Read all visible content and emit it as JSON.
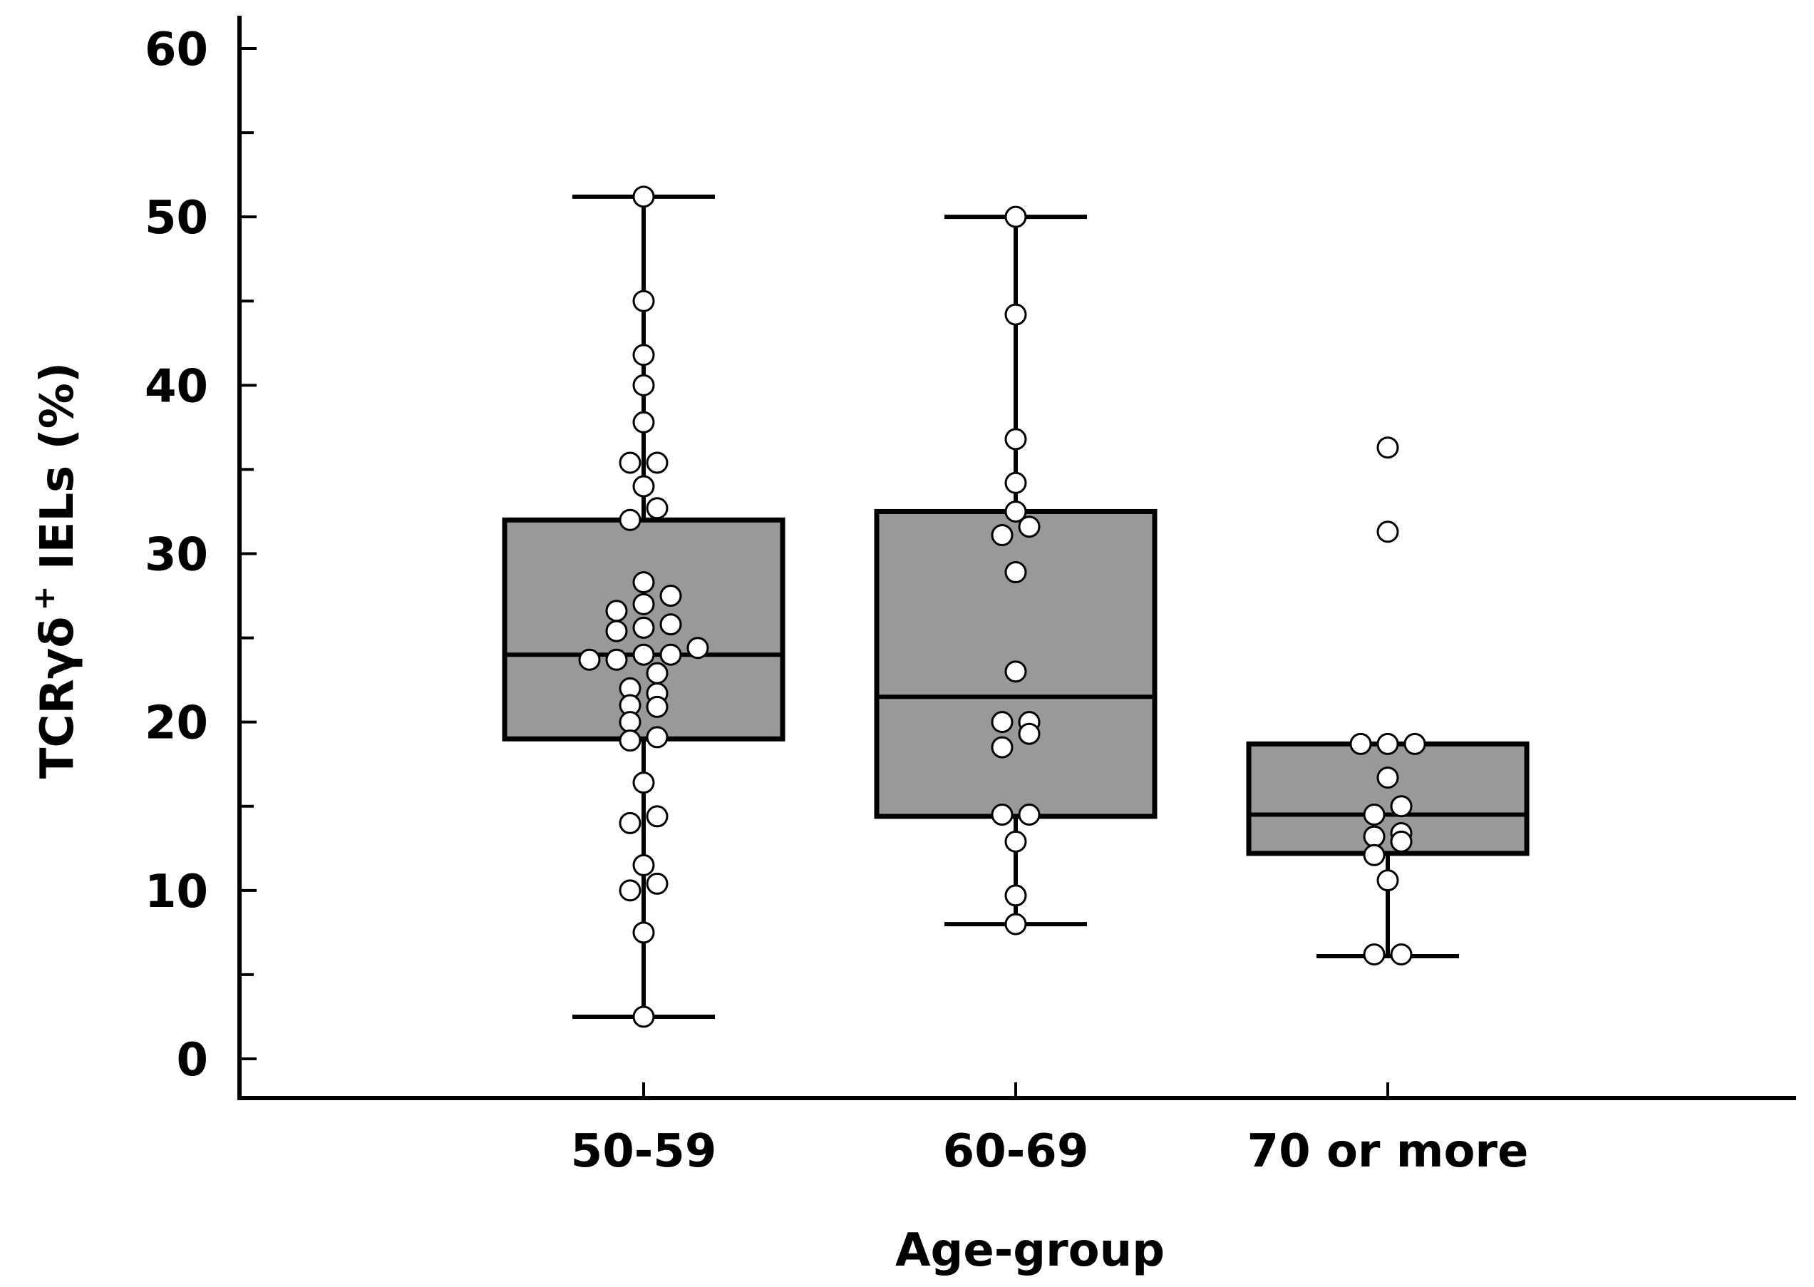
{
  "chart_data": {
    "type": "box",
    "title": "",
    "xlabel": "Age-group",
    "ylabel_main": "TCRγδ",
    "ylabel_sup": "+",
    "ylabel_rest": " IELs (%)",
    "ylim": [
      0,
      60
    ],
    "yticks": [
      0,
      10,
      20,
      30,
      40,
      50,
      60
    ],
    "ytick_labels": [
      "0",
      "10",
      "20",
      "30",
      "40",
      "50",
      "60"
    ],
    "minor_step": 5,
    "categories": [
      "50-59",
      "60-69",
      "70 or more"
    ],
    "colors": {
      "box_fill": "#999999",
      "stroke": "#000000",
      "point_fill": "#ffffff"
    },
    "groups": [
      {
        "name": "50-59",
        "whisker_low": 2.5,
        "q1": 19,
        "median": 24,
        "q3": 32,
        "whisker_high": 51.2,
        "points": [
          {
            "dx": 0,
            "y": 51.2
          },
          {
            "dx": 0,
            "y": 45
          },
          {
            "dx": 0,
            "y": 41.8
          },
          {
            "dx": 0,
            "y": 40
          },
          {
            "dx": 0,
            "y": 37.8
          },
          {
            "dx": -1,
            "y": 35.4
          },
          {
            "dx": 1,
            "y": 35.4
          },
          {
            "dx": 0,
            "y": 34
          },
          {
            "dx": 1,
            "y": 32.7
          },
          {
            "dx": -1,
            "y": 32
          },
          {
            "dx": 0,
            "y": 28.3
          },
          {
            "dx": 2,
            "y": 27.5
          },
          {
            "dx": 0,
            "y": 27
          },
          {
            "dx": -2,
            "y": 26.6
          },
          {
            "dx": 2,
            "y": 25.8
          },
          {
            "dx": 0,
            "y": 25.6
          },
          {
            "dx": -2,
            "y": 25.4
          },
          {
            "dx": 4,
            "y": 24.4
          },
          {
            "dx": 0,
            "y": 24
          },
          {
            "dx": 2,
            "y": 24
          },
          {
            "dx": -4,
            "y": 23.7
          },
          {
            "dx": -2,
            "y": 23.7
          },
          {
            "dx": 1,
            "y": 22.9
          },
          {
            "dx": -1,
            "y": 22
          },
          {
            "dx": 1,
            "y": 21.7
          },
          {
            "dx": -1,
            "y": 21
          },
          {
            "dx": 1,
            "y": 20.9
          },
          {
            "dx": -1,
            "y": 20
          },
          {
            "dx": 1,
            "y": 19.1
          },
          {
            "dx": -1,
            "y": 18.9
          },
          {
            "dx": 0,
            "y": 16.4
          },
          {
            "dx": 1,
            "y": 14.4
          },
          {
            "dx": -1,
            "y": 14
          },
          {
            "dx": 0,
            "y": 11.5
          },
          {
            "dx": 1,
            "y": 10.4
          },
          {
            "dx": -1,
            "y": 10
          },
          {
            "dx": 0,
            "y": 7.5
          },
          {
            "dx": 0,
            "y": 2.5
          }
        ]
      },
      {
        "name": "60-69",
        "whisker_low": 8,
        "q1": 14.4,
        "median": 21.5,
        "q3": 32.5,
        "whisker_high": 50,
        "points": [
          {
            "dx": 0,
            "y": 50
          },
          {
            "dx": 0,
            "y": 44.2
          },
          {
            "dx": 0,
            "y": 36.8
          },
          {
            "dx": 0,
            "y": 34.2
          },
          {
            "dx": 0,
            "y": 32.5
          },
          {
            "dx": 1,
            "y": 31.6
          },
          {
            "dx": -1,
            "y": 31.1
          },
          {
            "dx": 0,
            "y": 28.9
          },
          {
            "dx": 0,
            "y": 23
          },
          {
            "dx": -1,
            "y": 20
          },
          {
            "dx": 1,
            "y": 20
          },
          {
            "dx": 1,
            "y": 19.3
          },
          {
            "dx": -1,
            "y": 18.5
          },
          {
            "dx": -1,
            "y": 14.5
          },
          {
            "dx": 1,
            "y": 14.5
          },
          {
            "dx": 0,
            "y": 12.9
          },
          {
            "dx": 0,
            "y": 9.7
          },
          {
            "dx": 0,
            "y": 8
          }
        ]
      },
      {
        "name": "70 or more",
        "whisker_low": 6.1,
        "q1": 12.2,
        "median": 14.5,
        "q3": 18.7,
        "whisker_high": 18.7,
        "points": [
          {
            "dx": 0,
            "y": 36.3
          },
          {
            "dx": 0,
            "y": 31.3
          },
          {
            "dx": -2,
            "y": 18.7
          },
          {
            "dx": 0,
            "y": 18.7
          },
          {
            "dx": 2,
            "y": 18.7
          },
          {
            "dx": 0,
            "y": 16.7
          },
          {
            "dx": 1,
            "y": 15
          },
          {
            "dx": -1,
            "y": 14.5
          },
          {
            "dx": 1,
            "y": 13.4
          },
          {
            "dx": -1,
            "y": 13.2
          },
          {
            "dx": 1,
            "y": 12.9
          },
          {
            "dx": -1,
            "y": 12.1
          },
          {
            "dx": 0,
            "y": 10.6
          },
          {
            "dx": -1,
            "y": 6.2
          },
          {
            "dx": 1,
            "y": 6.2
          }
        ]
      }
    ]
  }
}
